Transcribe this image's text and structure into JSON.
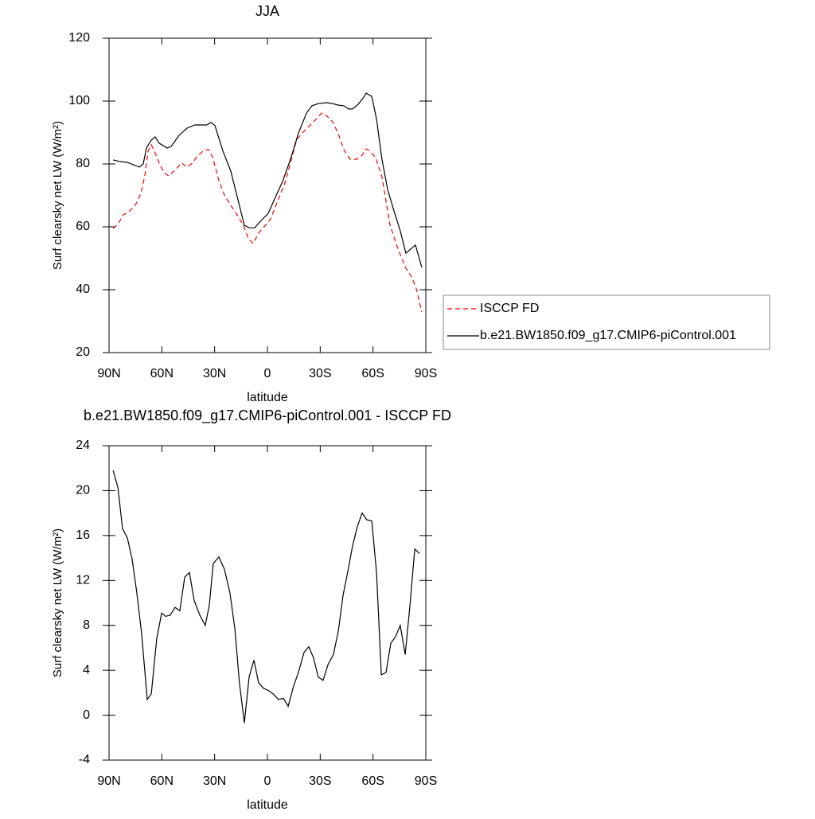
{
  "chart_data": [
    {
      "type": "line",
      "title": "JJA",
      "xlabel": "latitude",
      "ylabel": "Surf clearsky net LW (W/m²)",
      "xlim": [
        90,
        -90
      ],
      "xticks": [
        {
          "value": 90,
          "label": "90N"
        },
        {
          "value": 60,
          "label": "60N"
        },
        {
          "value": 30,
          "label": "30N"
        },
        0,
        {
          "value": -30,
          "label": "30S"
        },
        {
          "value": -60,
          "label": "60S"
        },
        {
          "value": -90,
          "label": "90S"
        }
      ],
      "ylim": [
        20,
        120
      ],
      "yticks": [
        20,
        40,
        60,
        80,
        100,
        120
      ],
      "legend": "right",
      "series": [
        {
          "name": "ISCCP FD",
          "color": "#ff0000",
          "dash": "dashed",
          "x": [
            87.7,
            85.0,
            81.9,
            78.7,
            75.1,
            71.9,
            69.6,
            67.8,
            66.0,
            63.8,
            61.5,
            58.8,
            56.1,
            52.5,
            48.8,
            45.7,
            42.5,
            39.8,
            36.2,
            33.5,
            31.2,
            27.6,
            24.4,
            20.8,
            17.2,
            13.6,
            10.8,
            8.1,
            5.0,
            1.4,
            -1.8,
            -5.4,
            -9.9,
            -13.6,
            -16.7,
            -20.8,
            -24.4,
            -27.6,
            -30.8,
            -33.5,
            -37.1,
            -40.3,
            -43.4,
            -47.0,
            -50.7,
            -53.8,
            -56.1,
            -58.3,
            -61.5,
            -65.1,
            -69.7,
            -74.2,
            -78.7,
            -81.9,
            -84.6,
            -87.7
          ],
          "values": [
            59.5,
            60.8,
            63.8,
            64.8,
            66.8,
            70.6,
            76.5,
            84.1,
            86.1,
            83.5,
            80.3,
            77.2,
            76.2,
            78.0,
            80.3,
            79.0,
            80.3,
            82.5,
            84.3,
            84.6,
            82.3,
            74.7,
            70.1,
            66.8,
            63.8,
            60.5,
            56.2,
            54.7,
            58.0,
            60.3,
            62.5,
            67.6,
            73.9,
            81.5,
            87.8,
            90.4,
            92.4,
            94.2,
            96.2,
            95.4,
            93.4,
            89.6,
            84.6,
            81.5,
            81.5,
            82.8,
            84.8,
            84.1,
            82.0,
            75.9,
            60.5,
            52.9,
            46.8,
            44.1,
            40.3,
            32.9
          ]
        },
        {
          "name": "b.e21.BW1850.f09_g17.CMIP6-piControl.001",
          "color": "#000000",
          "dash": "solid",
          "x": [
            87.7,
            84.1,
            79.6,
            75.1,
            72.8,
            70.6,
            68.7,
            66.0,
            63.8,
            61.5,
            57.0,
            54.7,
            50.2,
            45.7,
            41.2,
            36.6,
            34.4,
            32.1,
            29.8,
            25.3,
            20.8,
            16.3,
            13.1,
            10.4,
            7.2,
            3.6,
            -0.5,
            -4.1,
            -8.6,
            -13.1,
            -17.7,
            -22.2,
            -25.3,
            -28.9,
            -33.5,
            -37.1,
            -40.3,
            -43.4,
            -46.1,
            -48.4,
            -51.6,
            -54.8,
            -56.1,
            -59.3,
            -62.0,
            -65.1,
            -68.3,
            -71.9,
            -75.5,
            -78.7,
            -81.9,
            -84.1,
            -87.7
          ],
          "values": [
            81.3,
            80.8,
            80.5,
            79.5,
            79.0,
            80.0,
            85.1,
            87.6,
            88.6,
            86.6,
            85.1,
            85.6,
            89.1,
            91.4,
            92.4,
            92.4,
            92.4,
            93.2,
            92.2,
            84.1,
            77.7,
            67.6,
            60.5,
            59.7,
            59.7,
            62.0,
            64.3,
            68.9,
            74.4,
            81.5,
            89.9,
            96.2,
            98.5,
            99.2,
            99.5,
            99.2,
            98.7,
            98.5,
            97.5,
            97.5,
            99.0,
            101.3,
            102.5,
            101.5,
            94.2,
            81.5,
            71.9,
            65.1,
            58.7,
            51.6,
            53.2,
            54.2,
            47.1
          ]
        }
      ]
    },
    {
      "type": "line",
      "title": "b.e21.BW1850.f09_g17.CMIP6-piControl.001 - ISCCP FD",
      "xlabel": "latitude",
      "ylabel": "Surf clearsky net LW (W/m²)",
      "xlim": [
        90,
        -90
      ],
      "xticks": [
        {
          "value": 90,
          "label": "90N"
        },
        {
          "value": 60,
          "label": "60N"
        },
        {
          "value": 30,
          "label": "30N"
        },
        0,
        {
          "value": -30,
          "label": "30S"
        },
        {
          "value": -60,
          "label": "60S"
        },
        {
          "value": -90,
          "label": "90S"
        }
      ],
      "ylim": [
        -4,
        24
      ],
      "yticks": [
        -4,
        0,
        4,
        8,
        12,
        16,
        20,
        24
      ],
      "series": [
        {
          "color": "#000000",
          "dash": "solid",
          "x": [
            87.7,
            85.0,
            82.3,
            79.6,
            76.9,
            74.2,
            71.5,
            68.3,
            66.0,
            62.9,
            60.1,
            57.9,
            55.2,
            52.5,
            49.8,
            47.0,
            44.3,
            41.6,
            38.4,
            35.3,
            33.0,
            30.8,
            27.6,
            24.4,
            21.3,
            18.5,
            15.9,
            13.1,
            10.4,
            7.7,
            5.0,
            2.3,
            -0.5,
            -3.2,
            -6.3,
            -9.1,
            -11.8,
            -14.9,
            -17.6,
            -20.8,
            -23.5,
            -26.2,
            -28.9,
            -31.6,
            -34.4,
            -37.5,
            -40.3,
            -43.0,
            -45.7,
            -48.4,
            -51.1,
            -53.8,
            -56.5,
            -59.3,
            -62.0,
            -64.7,
            -67.4,
            -70.1,
            -72.8,
            -75.5,
            -78.3,
            -81.0,
            -83.7,
            -86.4
          ],
          "values": [
            21.8,
            20.3,
            16.6,
            15.8,
            13.9,
            10.9,
            7.3,
            1.4,
            1.9,
            6.8,
            9.1,
            8.8,
            8.9,
            9.6,
            9.3,
            12.3,
            12.7,
            10.2,
            8.9,
            8.0,
            9.8,
            13.5,
            14.1,
            13.0,
            10.9,
            7.7,
            2.9,
            -0.7,
            3.4,
            4.9,
            2.9,
            2.4,
            2.2,
            1.9,
            1.4,
            1.5,
            0.8,
            2.6,
            3.8,
            5.6,
            6.1,
            5.1,
            3.4,
            3.1,
            4.5,
            5.4,
            7.5,
            10.7,
            12.8,
            15.1,
            16.8,
            18.0,
            17.4,
            17.3,
            12.7,
            3.6,
            3.8,
            6.4,
            7.0,
            8.0,
            5.4,
            9.8,
            14.8,
            14.4
          ]
        }
      ]
    }
  ]
}
